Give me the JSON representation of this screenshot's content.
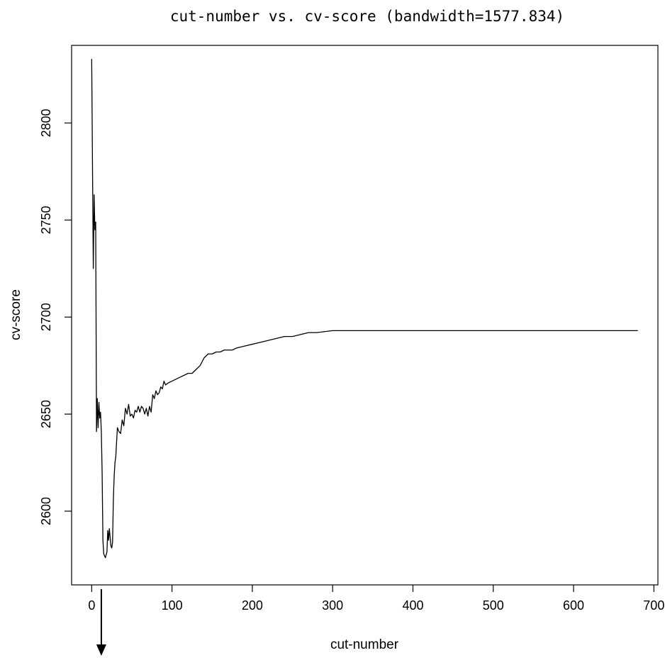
{
  "chart_data": {
    "type": "line",
    "title": "cut-number vs. cv-score (bandwidth=1577.834)",
    "xlabel": "cut-number",
    "ylabel": "cv-score",
    "xlim": [
      -25,
      705
    ],
    "ylim": [
      2562,
      2840
    ],
    "xticks": [
      0,
      100,
      200,
      300,
      400,
      500,
      600,
      700
    ],
    "yticks": [
      2600,
      2650,
      2700,
      2750,
      2800
    ],
    "grid": false,
    "series": [
      {
        "x": [
          0,
          1,
          2,
          3,
          4,
          5,
          6,
          7,
          8,
          9,
          10,
          11,
          12,
          13,
          14,
          15,
          17,
          19,
          20,
          21,
          22,
          24,
          25,
          26,
          27,
          28,
          29,
          30,
          32,
          34,
          36,
          38,
          40,
          42,
          44,
          46,
          48,
          50,
          52,
          54,
          56,
          58,
          60,
          62,
          64,
          66,
          68,
          70,
          72,
          74,
          76,
          78,
          80,
          82,
          84,
          86,
          88,
          90,
          92,
          95,
          100,
          105,
          110,
          115,
          120,
          125,
          130,
          135,
          140,
          145,
          150,
          155,
          160,
          165,
          170,
          175,
          180,
          190,
          200,
          210,
          220,
          230,
          240,
          250,
          260,
          270,
          280,
          300,
          320,
          350,
          400,
          450,
          500,
          550,
          600,
          650,
          680
        ],
        "y": [
          2833,
          2779,
          2725,
          2763,
          2745,
          2749,
          2641,
          2658,
          2643,
          2656,
          2648,
          2651,
          2641,
          2620,
          2585,
          2578,
          2576,
          2579,
          2590,
          2585,
          2591,
          2582,
          2581,
          2584,
          2606,
          2618,
          2625,
          2628,
          2643,
          2641,
          2640,
          2647,
          2644,
          2653,
          2650,
          2655,
          2649,
          2650,
          2648,
          2652,
          2651,
          2654,
          2651,
          2654,
          2653,
          2650,
          2653,
          2649,
          2654,
          2651,
          2660,
          2658,
          2662,
          2660,
          2661,
          2664,
          2663,
          2667,
          2665,
          2666,
          2667,
          2668,
          2669,
          2670,
          2671,
          2671,
          2673,
          2675,
          2679,
          2681,
          2681,
          2682,
          2682,
          2683,
          2683,
          2683,
          2684,
          2685,
          2686,
          2687,
          2688,
          2689,
          2690,
          2690,
          2691,
          2692,
          2692,
          2693,
          2693,
          2693,
          2693,
          2693,
          2693,
          2693,
          2693,
          2693,
          2693
        ]
      }
    ],
    "annotation": {
      "type": "arrow",
      "direction": "down",
      "at_x": 12
    }
  }
}
